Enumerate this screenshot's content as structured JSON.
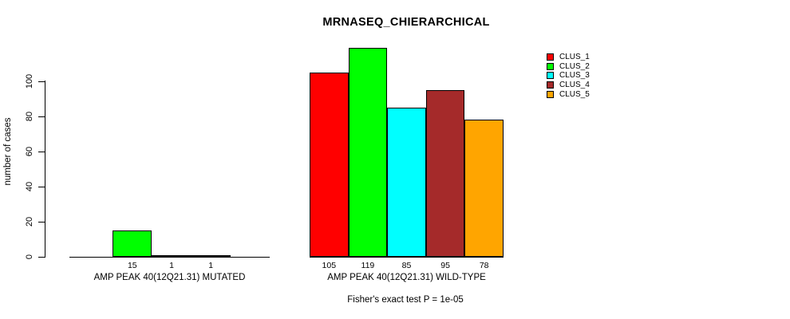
{
  "title": "MRNASEQ_CHIERARCHICAL",
  "chart_data": {
    "type": "bar",
    "title": "MRNASEQ_CHIERARCHICAL",
    "ylabel": "number of cases",
    "xlabel": "",
    "yticks": [
      0,
      20,
      40,
      60,
      80,
      100
    ],
    "ylim": [
      0,
      100
    ],
    "grid": false,
    "legend_position": "top-right",
    "series": [
      {
        "name": "CLUS_1",
        "color": "#FF0000"
      },
      {
        "name": "CLUS_2",
        "color": "#00FF00"
      },
      {
        "name": "CLUS_3",
        "color": "#00FFFF"
      },
      {
        "name": "CLUS_4",
        "color": "#A52A2A"
      },
      {
        "name": "CLUS_5",
        "color": "#FFA500"
      }
    ],
    "groups": [
      {
        "label": "AMP PEAK 40(12Q21.31) MUTATED",
        "values": [
          0,
          15,
          1,
          1,
          0
        ],
        "bar_labels": [
          "",
          "15",
          "1",
          "1",
          ""
        ]
      },
      {
        "label": "AMP PEAK 40(12Q21.31) WILD-TYPE",
        "values": [
          105,
          119,
          85,
          95,
          78
        ],
        "bar_labels": [
          "105",
          "119",
          "85",
          "95",
          "78"
        ]
      }
    ],
    "annotation": "Fisher's exact test P = 1e-05"
  }
}
